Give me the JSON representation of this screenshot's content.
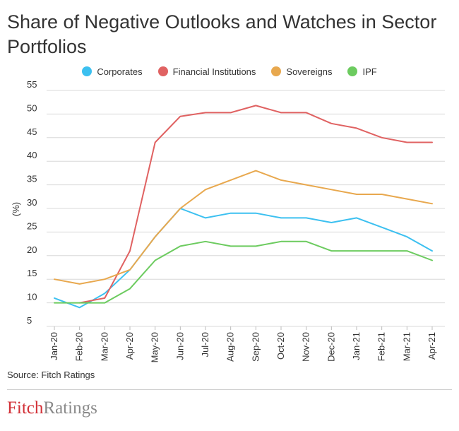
{
  "header": {
    "title": "Share of Negative Outlooks and Watches in Sector Portfolios"
  },
  "chart_data": {
    "type": "line",
    "title": "Share of Negative Outlooks and Watches in Sector Portfolios",
    "xlabel": "",
    "ylabel": "(%)",
    "ylim": [
      5,
      55
    ],
    "yticks": [
      5,
      10,
      15,
      20,
      25,
      30,
      35,
      40,
      45,
      50,
      55
    ],
    "grid": true,
    "legend_position": "top-center",
    "categories": [
      "Jan-20",
      "Feb-20",
      "Mar-20",
      "Apr-20",
      "May-20",
      "Jun-20",
      "Jul-20",
      "Aug-20",
      "Sep-20",
      "Oct-20",
      "Nov-20",
      "Dec-20",
      "Jan-21",
      "Feb-21",
      "Mar-21",
      "Apr-21"
    ],
    "series": [
      {
        "name": "Corporates",
        "color": "#3cc0f0",
        "values": [
          11,
          9,
          12,
          17,
          24,
          30,
          28,
          29,
          29,
          28,
          28,
          27,
          28,
          26,
          24,
          21
        ]
      },
      {
        "name": "Financial Institutions",
        "color": "#e06262",
        "values": [
          null,
          10,
          11,
          21,
          44,
          49.5,
          50.3,
          50.3,
          51.8,
          50.3,
          50.3,
          48,
          47,
          45,
          44,
          44
        ]
      },
      {
        "name": "Sovereigns",
        "color": "#e8a84e",
        "values": [
          15,
          14,
          15,
          17,
          24,
          30,
          34,
          36,
          38,
          36,
          35,
          34,
          33,
          33,
          32,
          31
        ]
      },
      {
        "name": "IPF",
        "color": "#6ccb5f",
        "values": [
          10,
          10,
          10,
          13,
          19,
          22,
          23,
          22,
          22,
          23,
          23,
          21,
          21,
          21,
          21,
          19
        ]
      }
    ]
  },
  "footer": {
    "source": "Source: Fitch Ratings",
    "logo_fitch": "Fitch",
    "logo_ratings": "Ratings"
  }
}
